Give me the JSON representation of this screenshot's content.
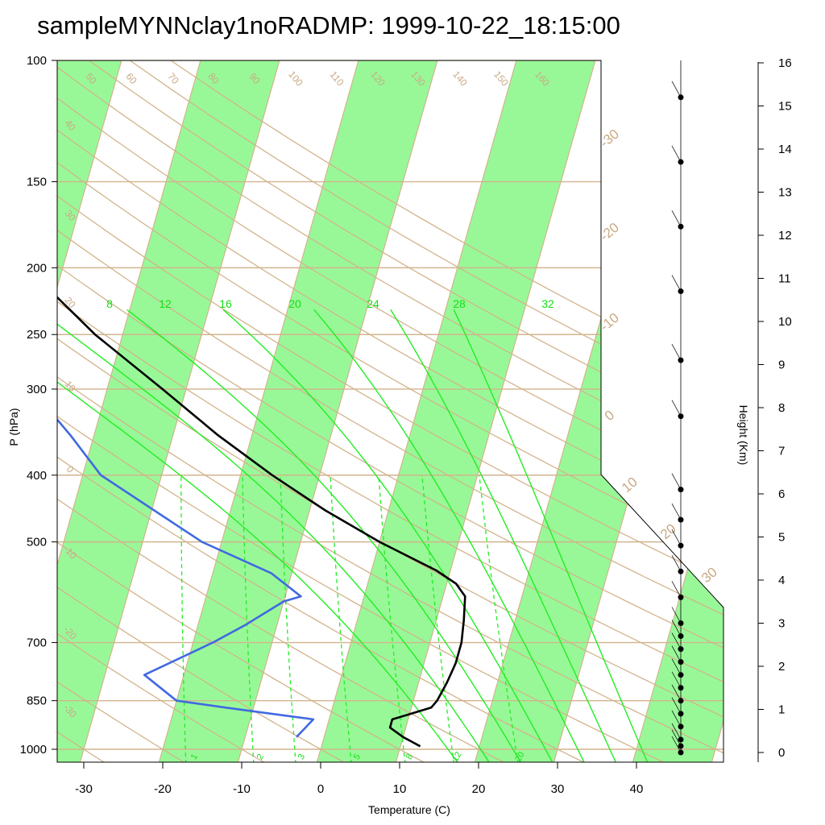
{
  "title": "sampleMYNNclay1noRADMP: 1999-10-22_18:15:00",
  "chart_data": {
    "type": "line",
    "title": "sampleMYNNclay1noRADMP: 1999-10-22_18:15:00",
    "xlabel": "Temperature (C)",
    "ylabel": "P (hPa)",
    "y2label": "Height (Km)",
    "x_ticks": [
      "-30",
      "-20",
      "-10",
      "0",
      "10",
      "20",
      "30",
      "40"
    ],
    "y_ticks": [
      "100",
      "150",
      "200",
      "250",
      "300",
      "400",
      "500",
      "700",
      "850",
      "1000"
    ],
    "y2_ticks": [
      "16",
      "15",
      "14",
      "13",
      "12",
      "11",
      "10",
      "9",
      "8",
      "7",
      "6",
      "5",
      "4",
      "3",
      "2",
      "1",
      "0"
    ],
    "dry_adiabat_labels": [
      "50",
      "60",
      "70",
      "80",
      "90",
      "100",
      "110",
      "120",
      "130",
      "140",
      "150",
      "160"
    ],
    "isotherm_labels_right": [
      "-30",
      "-20",
      "-10",
      "0",
      "10",
      "20",
      "30"
    ],
    "isotherm_labels_left": [
      "40",
      "30",
      "20",
      "10",
      "0",
      "-10",
      "-20",
      "-30"
    ],
    "moist_adiabat_labels": [
      "8",
      "12",
      "16",
      "20",
      "24",
      "28",
      "32"
    ],
    "mixing_ratio_labels": [
      "1",
      "2",
      "3",
      "5",
      "8",
      "12",
      "20"
    ],
    "colors": {
      "temperature": "#000000",
      "dewpoint": "#4169e1",
      "isotherm_bands": "#98f898",
      "dry_adiabats": "#d2b48c",
      "moist_adiabats": "#22ee22"
    },
    "series": [
      {
        "name": "Temperature",
        "pressure": [
          990,
          960,
          930,
          905,
          870,
          850,
          800,
          750,
          700,
          650,
          600,
          575,
          550,
          500,
          450,
          400,
          350,
          300,
          250,
          200,
          190
        ],
        "values": [
          12.5,
          10,
          8,
          8,
          12.5,
          13,
          13.6,
          14,
          14,
          13.5,
          12.8,
          11.2,
          8.2,
          0,
          -8,
          -16,
          -24.3,
          -33,
          -43.5,
          -54.5,
          -56
        ]
      },
      {
        "name": "Dewpoint",
        "pressure": [
          960,
          905,
          870,
          850,
          780,
          700,
          660,
          610,
          600,
          555,
          500,
          400,
          350,
          300,
          250,
          225,
          200,
          190
        ],
        "values": [
          -3.5,
          -2,
          -13.5,
          -20,
          -25,
          -17.5,
          -14,
          -10,
          -8,
          -12.6,
          -22.5,
          -37.7,
          -43,
          -49.6,
          -61,
          -66,
          -69,
          -68
        ]
      }
    ],
    "wind_barb_heights_km": [
      0,
      0.15,
      0.3,
      0.6,
      0.9,
      1.2,
      1.5,
      1.8,
      2.1,
      2.4,
      2.7,
      3.0,
      3.6,
      4.2,
      4.8,
      5.4,
      6.1,
      7.8,
      9.1,
      10.7,
      12.2,
      13.7,
      15.2
    ]
  }
}
